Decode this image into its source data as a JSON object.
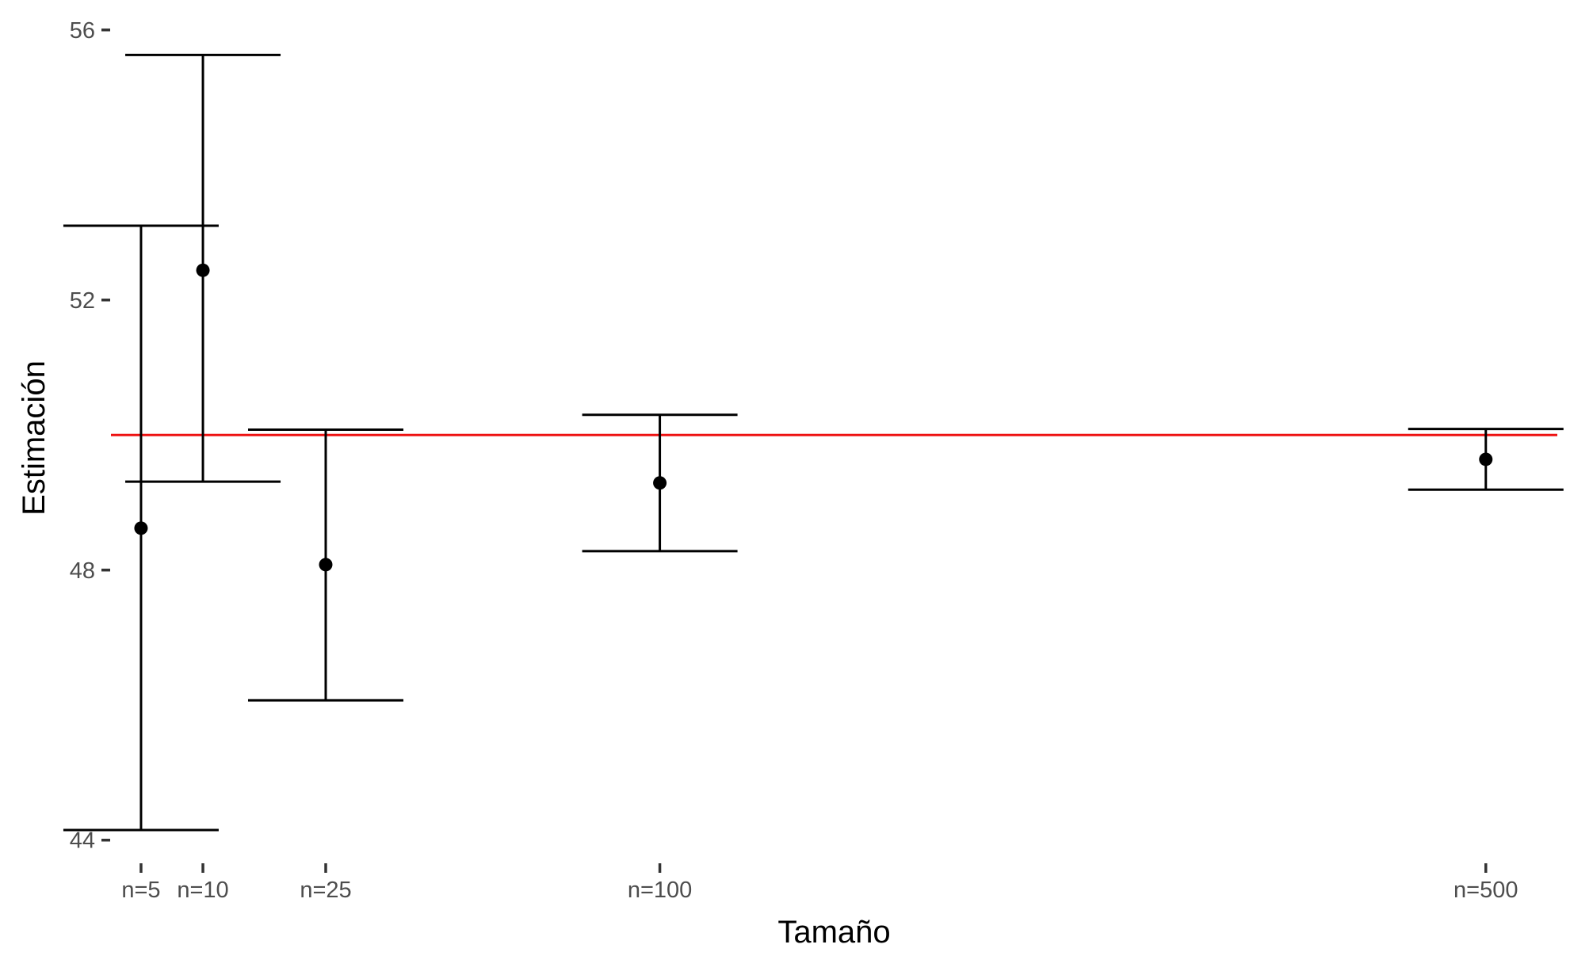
{
  "chart_data": {
    "type": "scatter",
    "subtype": "point-with-error-bars",
    "title": "",
    "xlabel": "Tamaño",
    "ylabel": "Estimación",
    "categories": [
      "n=5",
      "n=10",
      "n=25",
      "n=100",
      "n=500"
    ],
    "x_values": [
      5,
      10,
      25,
      100,
      500
    ],
    "x_scale": "sqrt",
    "ylim": [
      43.95,
      56.15
    ],
    "yticks": [
      44,
      48,
      52,
      56
    ],
    "ytick_labels": [
      "44",
      "48",
      "52",
      "56"
    ],
    "series": [
      {
        "estimate": [
          48.62,
          52.44,
          48.08,
          49.29,
          49.64
        ],
        "lower": [
          44.15,
          49.31,
          46.07,
          48.28,
          49.19
        ],
        "upper": [
          53.1,
          55.63,
          50.08,
          50.3,
          50.09
        ]
      }
    ],
    "reference_line": {
      "y": 50,
      "color": "#ee1111"
    },
    "grid": false,
    "legend": "none",
    "colors": {
      "points": "#000000",
      "error_bars": "#000000",
      "reference": "#ee1111"
    }
  }
}
